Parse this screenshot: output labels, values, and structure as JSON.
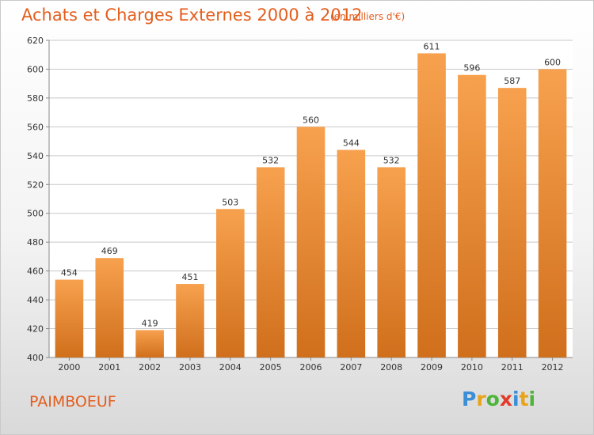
{
  "header": {
    "title": "Achats et Charges Externes 2000 à 2012",
    "subtitle": "(en milliers d'€)"
  },
  "footer": {
    "town": "PAIMBOEUF",
    "logo_letters": [
      {
        "char": "P",
        "color": "#3a8fd6"
      },
      {
        "char": "r",
        "color": "#e8a31b"
      },
      {
        "char": "o",
        "color": "#4eb53a"
      },
      {
        "char": "x",
        "color": "#e23a2a"
      },
      {
        "char": "i",
        "color": "#3a8fd6"
      },
      {
        "char": "t",
        "color": "#e8a31b"
      },
      {
        "char": "i",
        "color": "#4eb53a"
      }
    ]
  },
  "colors": {
    "title": "#e35d1d",
    "bar_top": "#f7a14e",
    "bar_bottom": "#d06f1c",
    "grid": "#c8c8c8",
    "axis_text": "#333333"
  },
  "chart_data": {
    "type": "bar",
    "categories": [
      "2000",
      "2001",
      "2002",
      "2003",
      "2004",
      "2005",
      "2006",
      "2007",
      "2008",
      "2009",
      "2010",
      "2011",
      "2012"
    ],
    "values": [
      454,
      469,
      419,
      451,
      503,
      532,
      560,
      544,
      532,
      611,
      596,
      587,
      600
    ],
    "ylim": [
      400,
      620
    ],
    "yticks": [
      400,
      420,
      440,
      460,
      480,
      500,
      520,
      540,
      560,
      580,
      600,
      620
    ],
    "grid": true,
    "data_labels": true
  }
}
